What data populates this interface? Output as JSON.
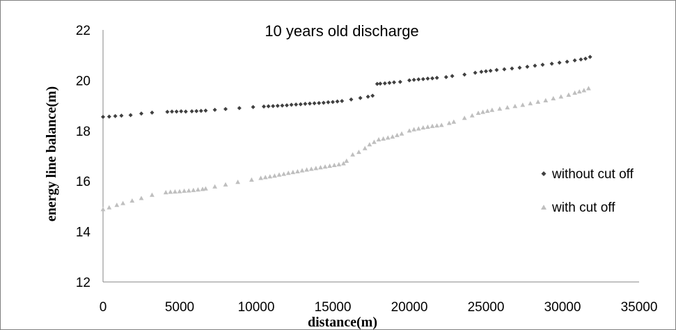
{
  "chart_data": {
    "type": "scatter",
    "title": "10 years old discharge",
    "xlabel": "distance(m)",
    "ylabel": "energy line balance(m)",
    "xlim": [
      0,
      35000
    ],
    "ylim": [
      12,
      22
    ],
    "xticks": [
      "0",
      "5000",
      "10000",
      "15000",
      "20000",
      "25000",
      "30000",
      "35000"
    ],
    "yticks": [
      "12",
      "14",
      "16",
      "18",
      "20",
      "22"
    ],
    "grid": false,
    "legend_position": "right",
    "series": [
      {
        "name": "without cut off",
        "marker": "diamond",
        "color": "#404040",
        "points": [
          [
            0,
            18.55
          ],
          [
            400,
            18.56
          ],
          [
            800,
            18.58
          ],
          [
            1200,
            18.6
          ],
          [
            1800,
            18.62
          ],
          [
            2500,
            18.68
          ],
          [
            3200,
            18.72
          ],
          [
            4200,
            18.75
          ],
          [
            4500,
            18.76
          ],
          [
            4800,
            18.76
          ],
          [
            5100,
            18.77
          ],
          [
            5400,
            18.76
          ],
          [
            5800,
            18.77
          ],
          [
            6100,
            18.78
          ],
          [
            6400,
            18.79
          ],
          [
            6700,
            18.8
          ],
          [
            7300,
            18.83
          ],
          [
            8000,
            18.86
          ],
          [
            8900,
            18.9
          ],
          [
            9800,
            18.94
          ],
          [
            10500,
            18.96
          ],
          [
            10800,
            18.97
          ],
          [
            11100,
            18.98
          ],
          [
            11400,
            18.99
          ],
          [
            11700,
            19.0
          ],
          [
            12000,
            19.01
          ],
          [
            12300,
            19.03
          ],
          [
            12600,
            19.04
          ],
          [
            12900,
            19.05
          ],
          [
            13200,
            19.07
          ],
          [
            13500,
            19.08
          ],
          [
            13800,
            19.09
          ],
          [
            14100,
            19.1
          ],
          [
            14400,
            19.11
          ],
          [
            14700,
            19.13
          ],
          [
            15000,
            19.14
          ],
          [
            15300,
            19.16
          ],
          [
            15600,
            19.18
          ],
          [
            16200,
            19.24
          ],
          [
            16800,
            19.3
          ],
          [
            17300,
            19.35
          ],
          [
            17600,
            19.39
          ],
          [
            17900,
            19.86
          ],
          [
            18100,
            19.87
          ],
          [
            18400,
            19.88
          ],
          [
            18700,
            19.9
          ],
          [
            19000,
            19.92
          ],
          [
            19400,
            19.94
          ],
          [
            20000,
            20.0
          ],
          [
            20300,
            20.02
          ],
          [
            20600,
            20.04
          ],
          [
            20900,
            20.05
          ],
          [
            21200,
            20.07
          ],
          [
            21500,
            20.08
          ],
          [
            21800,
            20.1
          ],
          [
            22400,
            20.13
          ],
          [
            22800,
            20.17
          ],
          [
            23600,
            20.23
          ],
          [
            24300,
            20.3
          ],
          [
            24700,
            20.34
          ],
          [
            25000,
            20.36
          ],
          [
            25300,
            20.38
          ],
          [
            25700,
            20.41
          ],
          [
            26200,
            20.44
          ],
          [
            26700,
            20.47
          ],
          [
            27200,
            20.5
          ],
          [
            27700,
            20.54
          ],
          [
            28200,
            20.58
          ],
          [
            28700,
            20.62
          ],
          [
            29300,
            20.66
          ],
          [
            29800,
            20.7
          ],
          [
            30300,
            20.74
          ],
          [
            30800,
            20.79
          ],
          [
            31200,
            20.83
          ],
          [
            31500,
            20.86
          ],
          [
            31800,
            20.93
          ]
        ]
      },
      {
        "name": "with cut off",
        "marker": "triangle",
        "color": "#bfbfbf",
        "points": [
          [
            0,
            14.88
          ],
          [
            400,
            14.95
          ],
          [
            900,
            15.05
          ],
          [
            1300,
            15.12
          ],
          [
            1900,
            15.22
          ],
          [
            2500,
            15.32
          ],
          [
            3200,
            15.45
          ],
          [
            4100,
            15.55
          ],
          [
            4400,
            15.57
          ],
          [
            4700,
            15.58
          ],
          [
            5000,
            15.59
          ],
          [
            5300,
            15.61
          ],
          [
            5600,
            15.62
          ],
          [
            5900,
            15.64
          ],
          [
            6200,
            15.66
          ],
          [
            6500,
            15.68
          ],
          [
            6700,
            15.7
          ],
          [
            7300,
            15.78
          ],
          [
            8000,
            15.86
          ],
          [
            8800,
            15.96
          ],
          [
            9700,
            16.05
          ],
          [
            10300,
            16.12
          ],
          [
            10600,
            16.15
          ],
          [
            10900,
            16.18
          ],
          [
            11200,
            16.21
          ],
          [
            11500,
            16.25
          ],
          [
            11800,
            16.28
          ],
          [
            12100,
            16.32
          ],
          [
            12400,
            16.35
          ],
          [
            12700,
            16.38
          ],
          [
            13000,
            16.42
          ],
          [
            13300,
            16.45
          ],
          [
            13600,
            16.48
          ],
          [
            13900,
            16.51
          ],
          [
            14200,
            16.54
          ],
          [
            14500,
            16.57
          ],
          [
            14800,
            16.6
          ],
          [
            15100,
            16.63
          ],
          [
            15400,
            16.66
          ],
          [
            15700,
            16.7
          ],
          [
            15900,
            16.8
          ],
          [
            16300,
            17.05
          ],
          [
            16700,
            17.15
          ],
          [
            17100,
            17.3
          ],
          [
            17400,
            17.45
          ],
          [
            17700,
            17.55
          ],
          [
            18000,
            17.65
          ],
          [
            18300,
            17.68
          ],
          [
            18600,
            17.72
          ],
          [
            18900,
            17.76
          ],
          [
            19200,
            17.82
          ],
          [
            19500,
            17.88
          ],
          [
            20000,
            18.0
          ],
          [
            20300,
            18.05
          ],
          [
            20600,
            18.08
          ],
          [
            20900,
            18.12
          ],
          [
            21200,
            18.15
          ],
          [
            21500,
            18.18
          ],
          [
            21800,
            18.2
          ],
          [
            22100,
            18.22
          ],
          [
            22600,
            18.3
          ],
          [
            22900,
            18.35
          ],
          [
            23600,
            18.5
          ],
          [
            24100,
            18.6
          ],
          [
            24500,
            18.7
          ],
          [
            24800,
            18.74
          ],
          [
            25100,
            18.78
          ],
          [
            25400,
            18.82
          ],
          [
            25900,
            18.87
          ],
          [
            26400,
            18.92
          ],
          [
            26900,
            18.97
          ],
          [
            27400,
            19.02
          ],
          [
            27900,
            19.08
          ],
          [
            28400,
            19.14
          ],
          [
            28900,
            19.2
          ],
          [
            29400,
            19.28
          ],
          [
            29900,
            19.35
          ],
          [
            30400,
            19.42
          ],
          [
            30800,
            19.5
          ],
          [
            31100,
            19.55
          ],
          [
            31400,
            19.6
          ],
          [
            31700,
            19.68
          ]
        ]
      }
    ]
  }
}
